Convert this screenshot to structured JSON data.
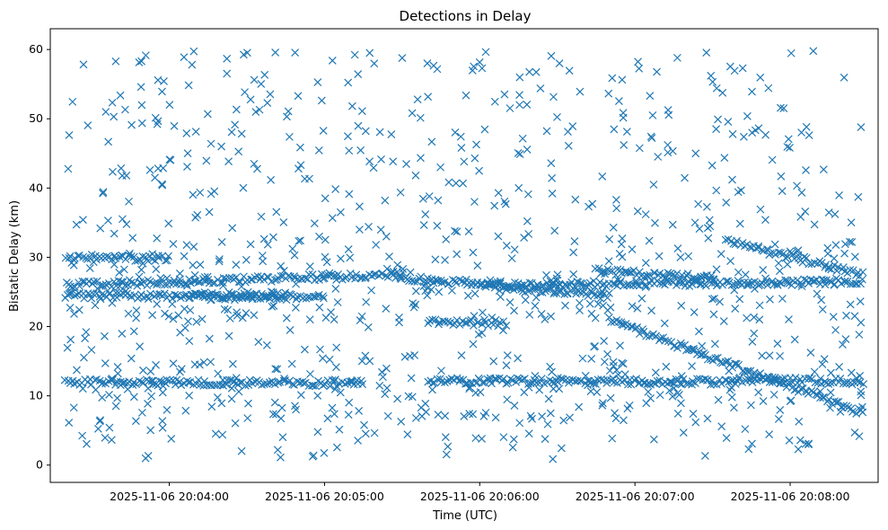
{
  "chart_data": {
    "type": "scatter",
    "title": "Detections in Delay",
    "xlabel": "Time (UTC)",
    "ylabel": "Bistatic Delay (km)",
    "marker": "x",
    "color": "#1f77b4",
    "xlim": [
      "2025-11-06 20:03:14",
      "2025-11-06 20:08:34"
    ],
    "ylim": [
      -2.5,
      63
    ],
    "x_ticks": [
      "2025-11-06 20:04:00",
      "2025-11-06 20:05:00",
      "2025-11-06 20:06:00",
      "2025-11-06 20:07:00",
      "2025-11-06 20:08:00"
    ],
    "y_ticks": [
      0,
      10,
      20,
      30,
      40,
      50,
      60
    ],
    "time_range": [
      "2025-11-06 20:03:20",
      "2025-11-06 20:08:28"
    ],
    "grid": false,
    "legend": "none",
    "tracks": [
      {
        "start": [
          "2025-11-06 20:03:20",
          12.0
        ],
        "end": [
          "2025-11-06 20:05:15",
          11.8
        ]
      },
      {
        "start": [
          "2025-11-06 20:05:40",
          12.2
        ],
        "end": [
          "2025-11-06 20:07:40",
          12.0
        ]
      },
      {
        "start": [
          "2025-11-06 20:07:40",
          12.3
        ],
        "end": [
          "2025-11-06 20:08:28",
          12.0
        ]
      },
      {
        "start": [
          "2025-11-06 20:03:20",
          24.5
        ],
        "end": [
          "2025-11-06 20:05:00",
          24.2
        ]
      },
      {
        "start": [
          "2025-11-06 20:03:20",
          26.0
        ],
        "end": [
          "2025-11-06 20:05:30",
          27.5
        ]
      },
      {
        "start": [
          "2025-11-06 20:05:30",
          27.0
        ],
        "end": [
          "2025-11-06 20:06:50",
          24.5
        ]
      },
      {
        "start": [
          "2025-11-06 20:06:00",
          26.0
        ],
        "end": [
          "2025-11-06 20:08:28",
          26.5
        ]
      },
      {
        "start": [
          "2025-11-06 20:06:50",
          21.0
        ],
        "end": [
          "2025-11-06 20:08:28",
          7.5
        ]
      },
      {
        "start": [
          "2025-11-06 20:07:35",
          32.5
        ],
        "end": [
          "2025-11-06 20:08:28",
          27.5
        ]
      },
      {
        "start": [
          "2025-11-06 20:05:40",
          20.7
        ],
        "end": [
          "2025-11-06 20:06:10",
          20.5
        ]
      },
      {
        "start": [
          "2025-11-06 20:06:45",
          28.0
        ],
        "end": [
          "2025-11-06 20:07:30",
          27.0
        ]
      },
      {
        "start": [
          "2025-11-06 20:03:20",
          30.0
        ],
        "end": [
          "2025-11-06 20:04:00",
          29.8
        ]
      },
      {
        "start": [
          "2025-11-06 20:04:10",
          24.5
        ],
        "end": [
          "2025-11-06 20:04:45",
          24.5
        ]
      }
    ],
    "scatter_extent": {
      "y_min": 0.8,
      "y_max": 59.8,
      "points_approx": 1900
    }
  }
}
